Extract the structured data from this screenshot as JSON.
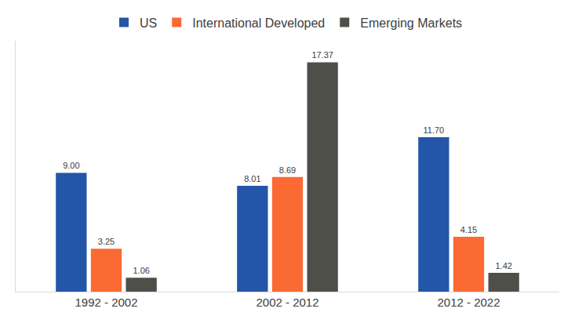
{
  "chart_data": {
    "type": "bar",
    "categories": [
      "1992 - 2002",
      "2002 - 2012",
      "2012 - 2022"
    ],
    "series": [
      {
        "name": "US",
        "color": "#2356a8",
        "values": [
          9.0,
          8.01,
          11.7
        ],
        "value_labels": [
          "9.00",
          "8.01",
          "11.70"
        ]
      },
      {
        "name": "International Developed",
        "color": "#fa6a32",
        "values": [
          3.25,
          8.69,
          4.15
        ],
        "value_labels": [
          "3.25",
          "8.69",
          "4.15"
        ]
      },
      {
        "name": "Emerging Markets",
        "color": "#4f4f4a",
        "values": [
          1.06,
          17.37,
          1.42
        ],
        "value_labels": [
          "1.06",
          "17.37",
          "1.42"
        ]
      }
    ],
    "ylim": [
      0,
      19
    ],
    "grid": false,
    "legend": "top",
    "data_labels": true,
    "tick_labels": "x"
  }
}
